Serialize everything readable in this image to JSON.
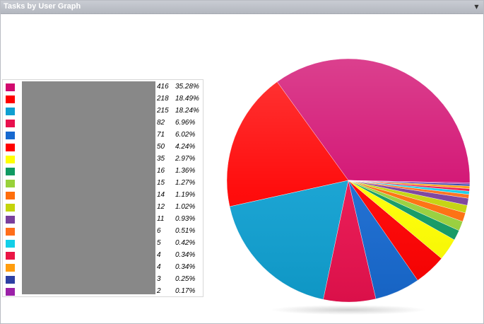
{
  "panel": {
    "title": "Tasks by User Graph",
    "collapse_icon": "chevron-down-icon"
  },
  "chart_data": {
    "type": "pie",
    "title": "Tasks by User Graph",
    "series": [
      {
        "values": [
          416,
          218,
          215,
          82,
          71,
          50,
          35,
          16,
          15,
          14,
          12,
          11,
          6,
          5,
          4,
          4,
          3,
          2
        ],
        "percents": [
          "35.28%",
          "18.49%",
          "18.24%",
          "6.96%",
          "6.02%",
          "4.24%",
          "2.97%",
          "1.36%",
          "1.27%",
          "1.19%",
          "1.02%",
          "0.93%",
          "0.51%",
          "0.42%",
          "0.34%",
          "0.34%",
          "0.25%",
          "0.17%"
        ],
        "colors": [
          "#d10a6e",
          "#ff0000",
          "#0f9fd0",
          "#e8114e",
          "#1769cf",
          "#ff0000",
          "#ffff00",
          "#109a63",
          "#98d13a",
          "#ff6e0b",
          "#c4d40a",
          "#7a3f9c",
          "#ff6e1a",
          "#12cfe8",
          "#ea1545",
          "#ff9d0d",
          "#2d3fa3",
          "#9b21a8"
        ]
      }
    ],
    "legend_position": "left"
  }
}
